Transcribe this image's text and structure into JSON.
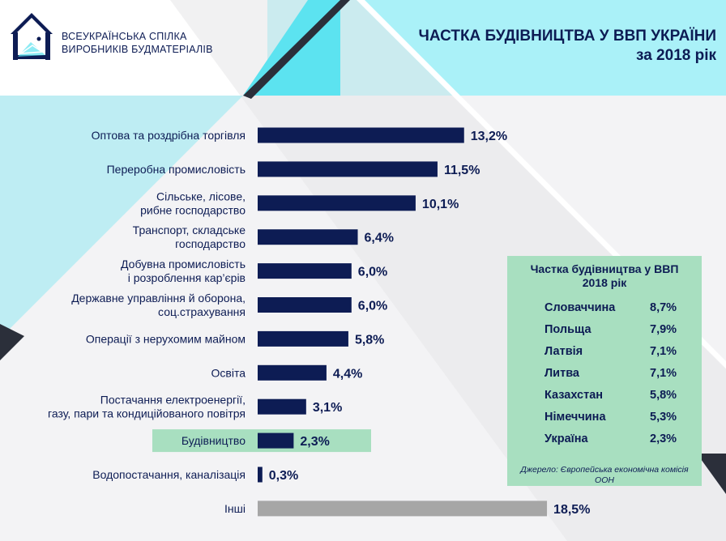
{
  "header": {
    "org_line1": "ВСЕУКРАЇНСЬКА СПІЛКА",
    "org_line2": "ВИРОБНИКІВ БУДМАТЕРІАЛІВ",
    "title_line1": "ЧАСТКА БУДІВНИЦТВА У ВВП УКРАЇНИ",
    "title_line2": "за 2018 рік",
    "logo_icon": "house-logo-icon"
  },
  "colors": {
    "bar": "#0d1c54",
    "bar_other": "#a6a6a6",
    "highlight": "#a8dfc0",
    "text": "#0d1c54",
    "accent_cyan": "#5ce3f0",
    "accent_dark": "#2b2f3a"
  },
  "chart_data": {
    "type": "bar",
    "orientation": "horizontal",
    "title": "ЧАСТКА БУДІВНИЦТВА У ВВП УКРАЇНИ за 2018 рік",
    "categories": [
      "Оптова та роздрібна торгівля",
      "Переробна промисловість",
      "Сільське, лісове, рибне господарство",
      "Транспорт, складське господарство",
      "Добувна промисловість і розроблення кар’єрів",
      "Державне управління й оборона, соц.страхування",
      "Операції з нерухомим майном",
      "Освіта",
      "Постачання електроенергії, газу, пари та кондиційованого повітря",
      "Будівництво",
      "Водопостачання, каналізація",
      "Інші"
    ],
    "label_lines": [
      [
        "Оптова та роздрібна торгівля"
      ],
      [
        "Переробна промисловість"
      ],
      [
        "Сільське, лісове,",
        "рибне господарство"
      ],
      [
        "Транспорт, складське",
        "господарство"
      ],
      [
        "Добувна промисловість",
        "і розроблення кар’єрів"
      ],
      [
        "Державне управління й оборона,",
        "соц.страхування"
      ],
      [
        "Операції з нерухомим майном"
      ],
      [
        "Освіта"
      ],
      [
        "Постачання електроенергії,",
        "газу, пари та кондиційованого повітря"
      ],
      [
        "Будівництво"
      ],
      [
        "Водопостачання, каналізація"
      ],
      [
        "Інші"
      ]
    ],
    "values": [
      13.2,
      11.5,
      10.1,
      6.4,
      6.0,
      6.0,
      5.8,
      4.4,
      3.1,
      2.3,
      0.3,
      18.5
    ],
    "value_labels": [
      "13,2%",
      "11,5%",
      "10,1%",
      "6,4%",
      "6,0%",
      "6,0%",
      "5,8%",
      "4,4%",
      "3,1%",
      "2,3%",
      "0,3%",
      "18,5%"
    ],
    "highlight_index": 9,
    "other_index": 11,
    "unit": "%",
    "xlim": [
      0,
      20
    ],
    "grid": false,
    "legend": "none"
  },
  "side_table": {
    "title_line1": "Частка будівництва у ВВП",
    "title_line2": "2018 рік",
    "rows": [
      {
        "country": "Словаччина",
        "value": "8,7%"
      },
      {
        "country": "Польща",
        "value": "7,9%"
      },
      {
        "country": "Латвія",
        "value": "7,1%"
      },
      {
        "country": "Литва",
        "value": "7,1%"
      },
      {
        "country": "Казахстан",
        "value": "5,8%"
      },
      {
        "country": "Німеччина",
        "value": "5,3%"
      },
      {
        "country": "Україна",
        "value": "2,3%"
      }
    ],
    "source_line1": "Джерело: Європейська економічна комісія",
    "source_line2": "ООН"
  }
}
